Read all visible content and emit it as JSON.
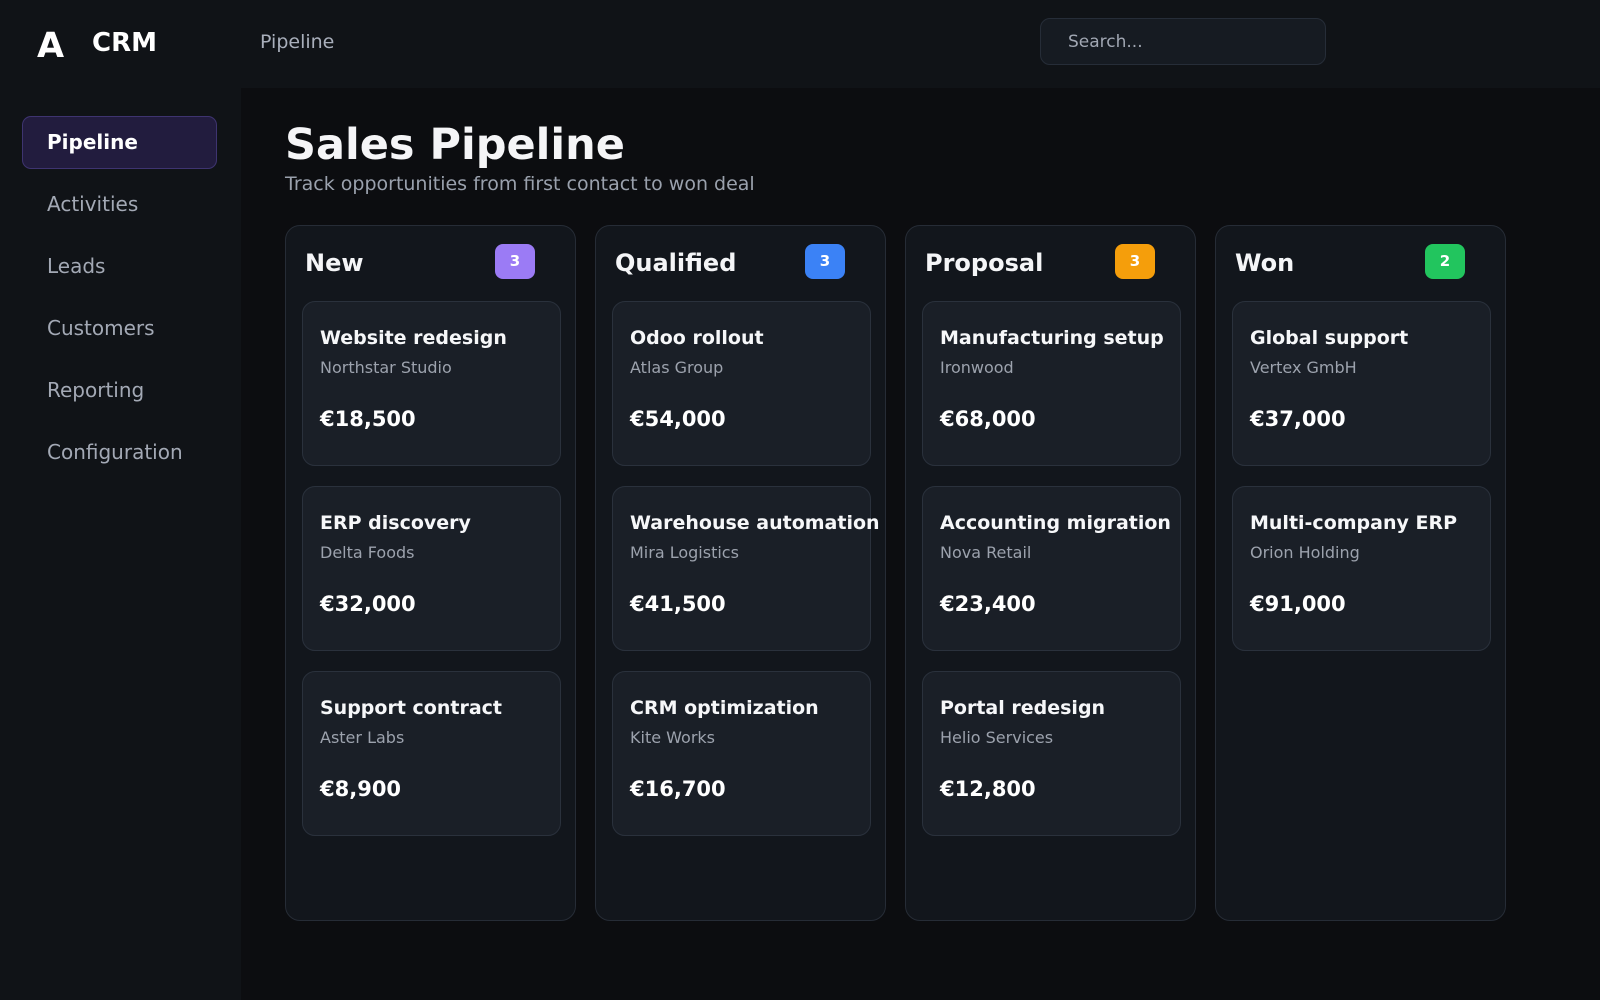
{
  "header": {
    "logo": "A",
    "app_name": "CRM",
    "breadcrumb": "Pipeline",
    "search_placeholder": "Search..."
  },
  "sidebar": {
    "items": [
      {
        "label": "Pipeline",
        "active": true
      },
      {
        "label": "Activities",
        "active": false
      },
      {
        "label": "Leads",
        "active": false
      },
      {
        "label": "Customers",
        "active": false
      },
      {
        "label": "Reporting",
        "active": false
      },
      {
        "label": "Configuration",
        "active": false
      }
    ]
  },
  "main": {
    "title": "Sales Pipeline",
    "subtitle": "Track opportunities from first contact to won deal"
  },
  "columns": [
    {
      "title": "New",
      "count": "3",
      "badge_color": "#9b7bf5",
      "cards": [
        {
          "title": "Website redesign",
          "company": "Northstar Studio",
          "amount": "€18,500"
        },
        {
          "title": "ERP discovery",
          "company": "Delta Foods",
          "amount": "€32,000"
        },
        {
          "title": "Support contract",
          "company": "Aster Labs",
          "amount": "€8,900"
        }
      ]
    },
    {
      "title": "Qualified",
      "count": "3",
      "badge_color": "#3b82f6",
      "cards": [
        {
          "title": "Odoo rollout",
          "company": "Atlas Group",
          "amount": "€54,000"
        },
        {
          "title": "Warehouse automation",
          "company": "Mira Logistics",
          "amount": "€41,500"
        },
        {
          "title": "CRM optimization",
          "company": "Kite Works",
          "amount": "€16,700"
        }
      ]
    },
    {
      "title": "Proposal",
      "count": "3",
      "badge_color": "#f59e0b",
      "cards": [
        {
          "title": "Manufacturing setup",
          "company": "Ironwood",
          "amount": "€68,000"
        },
        {
          "title": "Accounting migration",
          "company": "Nova Retail",
          "amount": "€23,400"
        },
        {
          "title": "Portal redesign",
          "company": "Helio Services",
          "amount": "€12,800"
        }
      ]
    },
    {
      "title": "Won",
      "count": "2",
      "badge_color": "#22c55e",
      "cards": [
        {
          "title": "Global support",
          "company": "Vertex GmbH",
          "amount": "€37,000"
        },
        {
          "title": "Multi-company ERP",
          "company": "Orion Holding",
          "amount": "€91,000"
        }
      ]
    }
  ]
}
